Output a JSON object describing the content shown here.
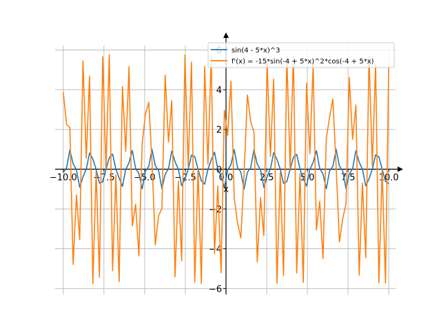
{
  "chart_data": {
    "type": "line",
    "title": "",
    "xlabel": "x",
    "ylabel": "",
    "xlim": [
      -10.5,
      10.5
    ],
    "ylim": [
      -6.3,
      6.5
    ],
    "grid": true,
    "legend_position": "top-right",
    "x_ticks": [
      -10.0,
      -7.5,
      -5.0,
      -2.5,
      0.0,
      2.5,
      5.0,
      7.5,
      10.0
    ],
    "x_tick_labels": [
      "−10.0",
      "−7.5",
      "−5.0",
      "−2.5",
      "0.0",
      "2.5",
      "5.0",
      "7.5",
      "10.0"
    ],
    "y_ticks": [
      -6,
      -4,
      -2,
      0,
      2,
      4,
      6
    ],
    "y_tick_labels": [
      "−6",
      "−4",
      "−2",
      "0",
      "2",
      "4",
      "6"
    ],
    "series": [
      {
        "name": "sin(4 - 5*x)^3",
        "color": "#1f77b4",
        "formula": "sin(4 - 5*x)^3"
      },
      {
        "name": "f'(x) = -15*sin(-4 + 5*x)^2*cos(-4 + 5*x)",
        "color": "#ff7f0e",
        "formula": "-15*sin(-4 + 5*x)^2*cos(-4 + 5*x)"
      }
    ],
    "x_range": [
      -10,
      10
    ],
    "samples": 100
  }
}
